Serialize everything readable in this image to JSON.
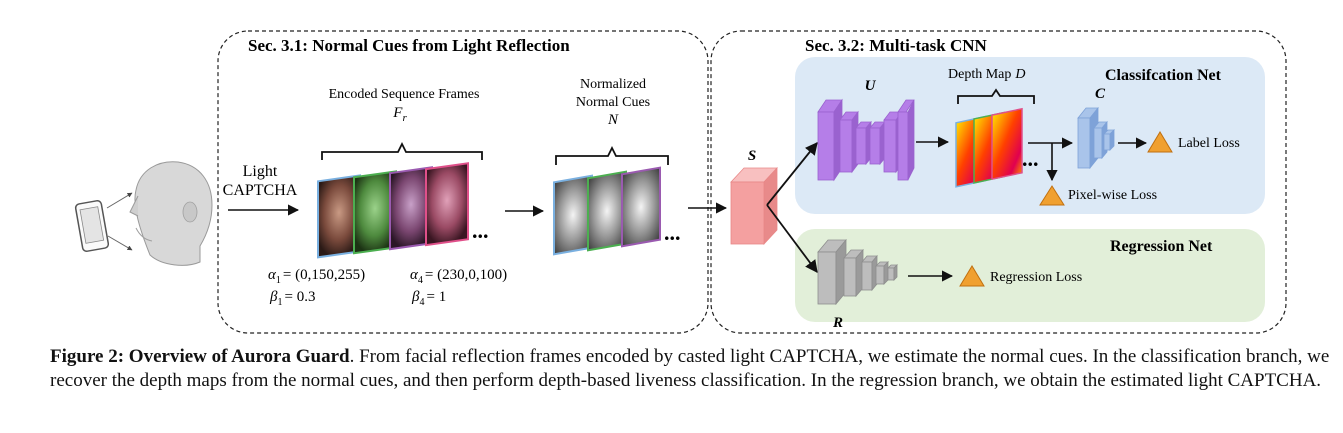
{
  "sections": {
    "sec31_title": "Sec. 3.1: Normal Cues from Light Reflection",
    "sec32_title": "Sec. 3.2: Multi-task CNN"
  },
  "input": {
    "light_line1": "Light",
    "light_line2": "CAPTCHA"
  },
  "frames": {
    "label": "Encoded Sequence Frames",
    "symbol": "F",
    "symbol_sub": "r",
    "ellipsis": "...",
    "alpha1": "= (0,150,255)",
    "beta1": "= 0.3",
    "alpha4": "= (230,0,100)",
    "beta4": "= 1",
    "sub1": "1",
    "sub4": "4"
  },
  "normals": {
    "label_line1": "Normalized",
    "label_line2": "Normal Cues",
    "symbol": "N",
    "ellipsis": "..."
  },
  "network": {
    "s_symbol": "S",
    "u_symbol": "U",
    "c_symbol": "C",
    "r_symbol": "R",
    "depth_label": "Depth Map",
    "depth_symbol": "D",
    "depth_ellipsis": "...",
    "classification_title": "Classifcation Net",
    "regression_title": "Regression Net",
    "label_loss": "Label Loss",
    "pixel_loss": "Pixel-wise Loss",
    "regression_loss": "Regression Loss"
  },
  "caption": {
    "bold": "Figure 2: Overview of Aurora Guard",
    "text": ". From facial reflection frames encoded by casted light CAPTCHA, we estimate the normal cues. In the classification branch, we recover the depth maps from the normal cues, and then perform depth-based liveness classification. In the regression branch, we obtain the estimated light CAPTCHA."
  },
  "colors": {
    "classification_bg": "#dce9f6",
    "regression_bg": "#e2efd9",
    "unet_purple": "#b57ee8",
    "s_block": "#f4a0a0",
    "c_block": "#a9c4ea",
    "r_block": "#bdbdbd",
    "loss_triangle": "#f0a030"
  }
}
